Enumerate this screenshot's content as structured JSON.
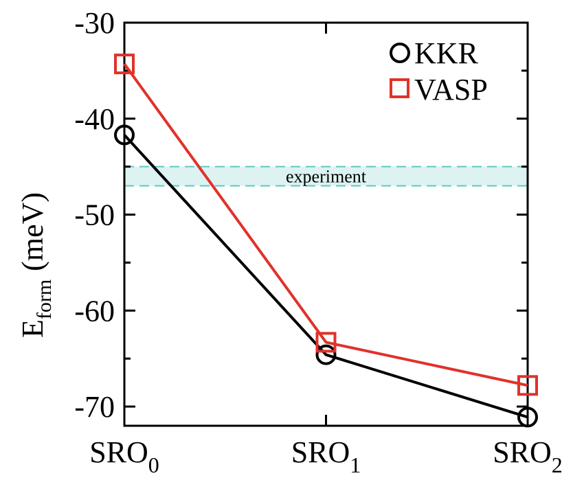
{
  "chart_data": {
    "type": "line",
    "categories": [
      "SRO",
      "SRO",
      "SRO"
    ],
    "category_subscripts": [
      "0",
      "1",
      "2"
    ],
    "ylabel": "E",
    "ylabel_subscript": "form",
    "ylabel_unit": "(meV)",
    "ylim": [
      -72,
      -30
    ],
    "yticks": [
      -30,
      -40,
      -50,
      -60,
      -70
    ],
    "ytick_labels": [
      "-30",
      "-40",
      "-50",
      "-60",
      "-70"
    ],
    "series": [
      {
        "name": "KKR",
        "marker": "circle",
        "color": "#000000",
        "values": [
          -41.7,
          -64.6,
          -71.1
        ]
      },
      {
        "name": "VASP",
        "marker": "square",
        "color": "#e0322b",
        "values": [
          -34.3,
          -63.3,
          -67.8
        ]
      }
    ],
    "reference_band": {
      "label": "experiment",
      "range": [
        -45,
        -47
      ],
      "color": "#5ec9c1"
    },
    "legend_position": "top-right",
    "grid": false
  }
}
